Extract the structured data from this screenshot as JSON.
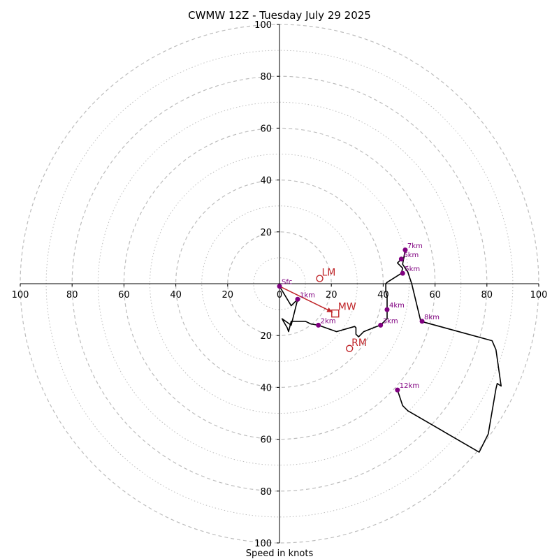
{
  "chart_data": {
    "type": "hodograph",
    "title": "CWMW 12Z - Tuesday July 29 2025",
    "xlabel": "Speed in knots",
    "axis_range": [
      -100,
      100
    ],
    "axis_ticks": [
      100,
      80,
      60,
      40,
      20,
      0,
      20,
      40,
      60,
      80,
      100
    ],
    "axis_tick_values": [
      -100,
      -80,
      -60,
      -40,
      -20,
      0,
      20,
      40,
      60,
      80,
      100
    ],
    "y_axis_ticks": [
      "100",
      "80",
      "60",
      "40",
      "20",
      "20",
      "40",
      "60",
      "80",
      "100"
    ],
    "y_axis_tick_values": [
      100,
      80,
      60,
      40,
      20,
      -20,
      -40,
      -60,
      -80,
      -100
    ],
    "ring_radii_dashed": [
      20,
      40,
      60,
      80,
      100
    ],
    "ring_radii_dotted": [
      10,
      30,
      50,
      70,
      90
    ],
    "colors": {
      "trace": "#000000",
      "height_marker": "#800080",
      "motion": "#c0262a",
      "rings": "#bdbdbd"
    },
    "trace_points": [
      [
        0,
        -1
      ],
      [
        4.5,
        -8.5
      ],
      [
        7,
        -6
      ],
      [
        5,
        -14
      ],
      [
        4.5,
        -16
      ],
      [
        1,
        -13.5
      ],
      [
        1.5,
        -14.5
      ],
      [
        3,
        -17
      ],
      [
        3.5,
        -18.5
      ],
      [
        4.5,
        -14.5
      ],
      [
        10,
        -14.5
      ],
      [
        12,
        -15.5
      ],
      [
        15,
        -16
      ],
      [
        22,
        -18.5
      ],
      [
        29,
        -16.5
      ],
      [
        29.5,
        -17
      ],
      [
        29.5,
        -19.5
      ],
      [
        30.5,
        -20.5
      ],
      [
        32.5,
        -18.5
      ],
      [
        37.5,
        -16.5
      ],
      [
        39,
        -16
      ],
      [
        40,
        -15
      ],
      [
        41.5,
        -13.5
      ],
      [
        41.5,
        -10
      ],
      [
        41.5,
        -5
      ],
      [
        41,
        -3
      ],
      [
        41,
        0
      ],
      [
        41.5,
        0.5
      ],
      [
        47,
        4
      ],
      [
        47.5,
        6
      ],
      [
        45.5,
        8
      ],
      [
        47,
        9.5
      ],
      [
        48,
        10
      ],
      [
        48.5,
        13
      ],
      [
        47.5,
        7.5
      ],
      [
        49.5,
        4.5
      ],
      [
        51,
        0
      ],
      [
        54.5,
        -14.5
      ],
      [
        82,
        -22
      ],
      [
        83.5,
        -25.5
      ],
      [
        85.5,
        -39.5
      ],
      [
        84,
        -38.5
      ],
      [
        83.5,
        -40.5
      ],
      [
        80.5,
        -58
      ],
      [
        77,
        -65
      ],
      [
        49.5,
        -49
      ],
      [
        47.5,
        -47
      ],
      [
        45.5,
        -41
      ]
    ],
    "height_markers": [
      {
        "label": "Sfc",
        "u": 0,
        "v": -1
      },
      {
        "label": "1km",
        "u": 7,
        "v": -6
      },
      {
        "label": "2km",
        "u": 15,
        "v": -16
      },
      {
        "label": "3km",
        "u": 39,
        "v": -16
      },
      {
        "label": "4km",
        "u": 41.5,
        "v": -10
      },
      {
        "label": "5km",
        "u": 47.5,
        "v": 4
      },
      {
        "label": "6km",
        "u": 47,
        "v": 9.5
      },
      {
        "label": "7km",
        "u": 48.5,
        "v": 13
      },
      {
        "label": "8km",
        "u": 55,
        "v": -14.5
      },
      {
        "label": "12km",
        "u": 45.5,
        "v": -41
      }
    ],
    "storm_motion": {
      "LM": {
        "label": "LM",
        "u": 15.5,
        "v": 2
      },
      "RM": {
        "label": "RM",
        "u": 27,
        "v": -25
      },
      "MW": {
        "label": "MW",
        "u": 21.5,
        "v": -11.5
      }
    },
    "mean_wind_arrow": {
      "from": [
        0,
        -1
      ],
      "to": [
        20.5,
        -11
      ]
    }
  }
}
